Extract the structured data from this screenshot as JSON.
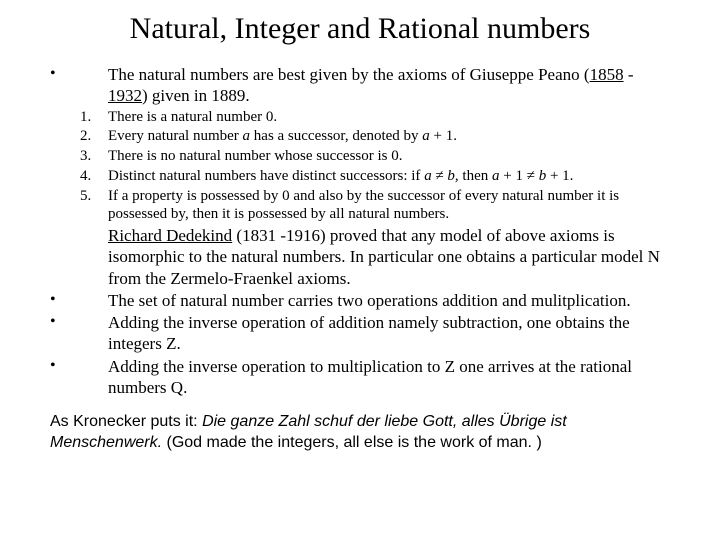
{
  "title": "Natural, Integer and Rational numbers",
  "intro_pre": "The natural numbers are best given by the axioms of  ",
  "intro_name": "Giuseppe Peano",
  "intro_paren_open": " (",
  "intro_year1": "1858",
  "intro_dash": " - ",
  "intro_year2": "1932",
  "intro_paren_close": ") given in 1889.",
  "axiom1_num": "1.",
  "axiom1": "There is a natural number 0.",
  "axiom2_num": "2.",
  "axiom2_pre": "Every natural number ",
  "axiom2_a1": "a",
  "axiom2_mid": " has a successor, denoted by ",
  "axiom2_a2": "a",
  "axiom2_post": " + 1.",
  "axiom3_num": "3.",
  "axiom3": "There is no natural number whose successor is 0.",
  "axiom4_num": "4.",
  "axiom4_pre": "Distinct natural numbers have distinct successors: if ",
  "axiom4_a1": "a",
  "axiom4_ne1": " ≠ ",
  "axiom4_b1": "b",
  "axiom4_mid": ", then ",
  "axiom4_a2": "a",
  "axiom4_plus1": " + 1 ≠ ",
  "axiom4_b2": "b",
  "axiom4_post": " + 1.",
  "axiom5_num": "5.",
  "axiom5": "If a property is possessed by 0 and also by the successor of every natural number it is possessed by, then it is possessed by all natural numbers.",
  "dedekind_name": "Richard Dedekind",
  "dedekind_rest": " (1831 -1916) proved that  any model of above axioms is isomorphic to the natural numbers. In particular one obtains a particular model N from the Zermelo-Fraenkel axioms.",
  "bullet2": "The set of natural number carries two operations addition and mulitplication.",
  "bullet3": "Adding the inverse operation of addition namely subtraction, one obtains the integers Z.",
  "bullet4": "Adding the inverse operation to multiplication to Z  one arrives at the rational numbers Q.",
  "footer_pre": "As Kronecker puts it: ",
  "footer_italic": "Die ganze Zahl schuf der liebe Gott, alles Übrige ist Menschenwerk.",
  "footer_post": " (God made the integers, all else is the work of man. )",
  "bullet_char": "•"
}
